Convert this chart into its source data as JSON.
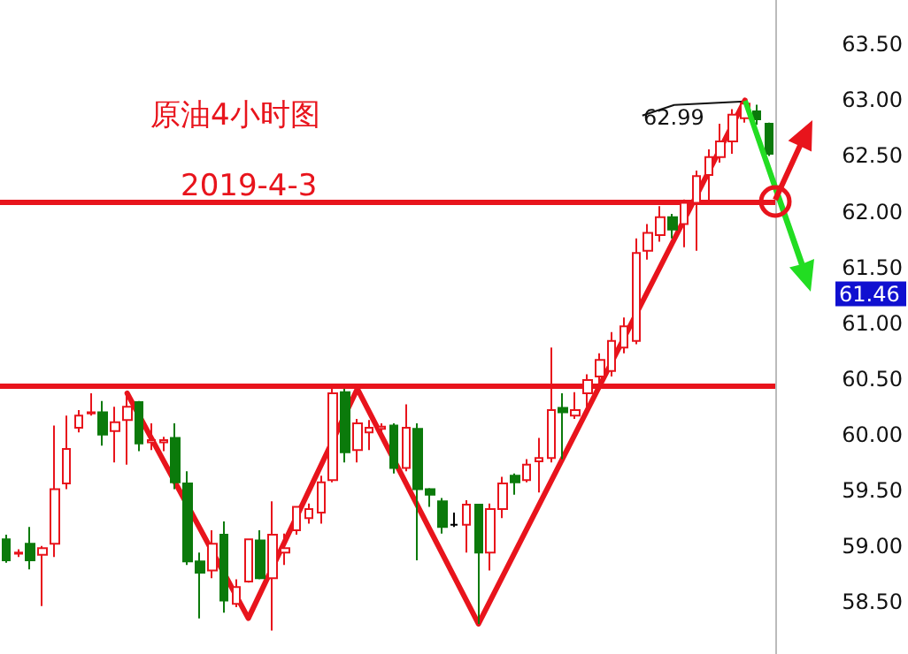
{
  "chart_data": {
    "type": "candlestick",
    "title": "原油4小时图",
    "subtitle": "2019-4-3",
    "categories": [
      null,
      null,
      null,
      null,
      null,
      null,
      null,
      null,
      null,
      null,
      null,
      null,
      null,
      null,
      null,
      null,
      null,
      null,
      null,
      null,
      null,
      null,
      null,
      null,
      null,
      null,
      null,
      null,
      null,
      null,
      null,
      null,
      null,
      null,
      null,
      null,
      null,
      null,
      null,
      null,
      null,
      null,
      null,
      null,
      null,
      null,
      null,
      null,
      null,
      null,
      null,
      null,
      null,
      null,
      null,
      null,
      null,
      null,
      null,
      null,
      null,
      null,
      null,
      null
    ],
    "series": [
      {
        "ohlc": [
          [
            59.06,
            59.1,
            58.85,
            58.87
          ],
          [
            58.93,
            58.97,
            58.9,
            58.94
          ],
          [
            59.02,
            59.17,
            58.79,
            58.87
          ],
          [
            58.92,
            59.0,
            58.46,
            58.98
          ],
          [
            59.02,
            60.08,
            58.9,
            59.51
          ],
          [
            59.56,
            60.17,
            59.51,
            59.87
          ],
          [
            60.06,
            60.22,
            60.02,
            60.17
          ],
          [
            60.19,
            60.37,
            60.17,
            60.2
          ],
          [
            60.2,
            60.3,
            59.9,
            60.0
          ],
          [
            60.03,
            60.25,
            59.75,
            60.11
          ],
          [
            60.13,
            60.38,
            59.73,
            60.25
          ],
          [
            60.29,
            60.3,
            59.85,
            59.92
          ],
          [
            59.93,
            60.1,
            59.86,
            59.95
          ],
          [
            59.93,
            59.98,
            59.85,
            59.95
          ],
          [
            59.97,
            60.1,
            59.51,
            59.57
          ],
          [
            59.56,
            59.67,
            58.83,
            58.86
          ],
          [
            58.86,
            58.94,
            58.35,
            58.76
          ],
          [
            58.78,
            59.14,
            58.71,
            59.02
          ],
          [
            59.1,
            59.22,
            58.4,
            58.51
          ],
          [
            58.48,
            58.7,
            58.45,
            58.63
          ],
          [
            58.68,
            59.06,
            58.67,
            59.06
          ],
          [
            59.05,
            59.14,
            58.7,
            58.71
          ],
          [
            58.71,
            59.4,
            58.24,
            59.1
          ],
          [
            58.94,
            59.11,
            58.83,
            58.98
          ],
          [
            59.14,
            59.35,
            59.1,
            59.35
          ],
          [
            59.25,
            59.38,
            59.2,
            59.33
          ],
          [
            59.3,
            59.63,
            59.2,
            59.57
          ],
          [
            59.59,
            60.41,
            59.57,
            60.37
          ],
          [
            60.38,
            60.41,
            59.75,
            59.84
          ],
          [
            59.86,
            60.14,
            59.75,
            60.1
          ],
          [
            60.02,
            60.13,
            59.86,
            60.06
          ],
          [
            60.05,
            60.1,
            60.0,
            60.07
          ],
          [
            60.08,
            60.1,
            59.65,
            59.7
          ],
          [
            59.7,
            60.27,
            59.67,
            60.06
          ],
          [
            60.05,
            60.1,
            58.87,
            59.51
          ],
          [
            59.51,
            59.52,
            59.35,
            59.46
          ],
          [
            59.4,
            59.43,
            59.11,
            59.17
          ],
          [
            59.19,
            59.3,
            59.17,
            59.19
          ],
          [
            59.19,
            59.41,
            58.94,
            59.37
          ],
          [
            59.37,
            59.37,
            58.3,
            58.94
          ],
          [
            58.94,
            59.38,
            58.78,
            59.33
          ],
          [
            59.33,
            59.62,
            59.25,
            59.56
          ],
          [
            59.63,
            59.65,
            59.46,
            59.57
          ],
          [
            59.59,
            59.78,
            59.57,
            59.73
          ],
          [
            59.76,
            59.97,
            59.48,
            59.79
          ],
          [
            59.79,
            60.78,
            59.75,
            60.22
          ],
          [
            60.24,
            60.37,
            59.78,
            60.2
          ],
          [
            60.17,
            60.38,
            60.14,
            60.22
          ],
          [
            60.37,
            60.54,
            60.25,
            60.49
          ],
          [
            60.52,
            60.73,
            60.46,
            60.67
          ],
          [
            60.57,
            60.92,
            60.52,
            60.84
          ],
          [
            60.78,
            61.05,
            60.73,
            60.97
          ],
          [
            60.84,
            61.76,
            60.81,
            61.63
          ],
          [
            61.65,
            61.89,
            61.57,
            61.81
          ],
          [
            61.79,
            62.05,
            61.73,
            61.95
          ],
          [
            61.95,
            61.98,
            61.76,
            61.84
          ],
          [
            61.89,
            62.11,
            61.68,
            62.08
          ],
          [
            62.08,
            62.37,
            61.65,
            62.32
          ],
          [
            62.33,
            62.56,
            62.08,
            62.49
          ],
          [
            62.49,
            62.79,
            62.44,
            62.63
          ],
          [
            62.63,
            62.92,
            62.52,
            62.87
          ],
          [
            62.84,
            62.99,
            62.8,
            62.97
          ],
          [
            62.9,
            62.96,
            62.78,
            62.83
          ],
          [
            62.79,
            62.8,
            62.5,
            62.52
          ]
        ],
        "colors": [
          "#0b7a0b",
          "#e8141c",
          "#0b7a0b",
          "#e8141c",
          "#e8141c",
          "#e8141c",
          "#e8141c",
          "#e8141c",
          "#0b7a0b",
          "#e8141c",
          "#e8141c",
          "#0b7a0b",
          "#e8141c",
          "#e8141c",
          "#0b7a0b",
          "#0b7a0b",
          "#0b7a0b",
          "#e8141c",
          "#0b7a0b",
          "#e8141c",
          "#e8141c",
          "#0b7a0b",
          "#e8141c",
          "#e8141c",
          "#e8141c",
          "#e8141c",
          "#e8141c",
          "#e8141c",
          "#0b7a0b",
          "#e8141c",
          "#e8141c",
          "#e8141c",
          "#0b7a0b",
          "#e8141c",
          "#0b7a0b",
          "#0b7a0b",
          "#0b7a0b",
          "#000000",
          "#e8141c",
          "#0b7a0b",
          "#e8141c",
          "#e8141c",
          "#0b7a0b",
          "#e8141c",
          "#e8141c",
          "#e8141c",
          "#0b7a0b",
          "#e8141c",
          "#e8141c",
          "#e8141c",
          "#e8141c",
          "#e8141c",
          "#e8141c",
          "#e8141c",
          "#e8141c",
          "#0b7a0b",
          "#e8141c",
          "#e8141c",
          "#e8141c",
          "#e8141c",
          "#e8141c",
          "#e8141c",
          "#0b7a0b",
          "#0b7a0b"
        ]
      },
      {
        "type": "line",
        "color": "#e8141c",
        "values": [
          null,
          null,
          null,
          null,
          null,
          null,
          null,
          null,
          null,
          null,
          60.37,
          null,
          null,
          null,
          null,
          null,
          null,
          null,
          null,
          null,
          58.35,
          null,
          null,
          null,
          null,
          null,
          null,
          null,
          null,
          60.41,
          null,
          null,
          null,
          null,
          null,
          null,
          null,
          null,
          null,
          58.3,
          null,
          null,
          null,
          null,
          null,
          null,
          null,
          null,
          null,
          null,
          null,
          null,
          null,
          null,
          null,
          null,
          null,
          null,
          null,
          null,
          null,
          63.0,
          null,
          null
        ]
      }
    ],
    "ylim": [
      58.03,
      63.9
    ],
    "yticks": [
      {
        "value": 58.5,
        "label": "58.50"
      },
      {
        "value": 59,
        "label": "59.00"
      },
      {
        "value": 59.5,
        "label": "59.50"
      },
      {
        "value": 60,
        "label": "60.00"
      },
      {
        "value": 60.5,
        "label": "60.50"
      },
      {
        "value": 61,
        "label": "61.00"
      },
      {
        "value": 61.5,
        "label": "61.50"
      },
      {
        "value": 62,
        "label": "62.00"
      },
      {
        "value": 62.5,
        "label": "62.50"
      },
      {
        "value": 63,
        "label": "63.00"
      },
      {
        "value": 63.5,
        "label": "63.50"
      }
    ],
    "tick_labels": "y",
    "grid": false,
    "ref_lines": [
      {
        "axis": "y",
        "value": 60.43,
        "color": "#e8141c"
      },
      {
        "axis": "y",
        "value": 62.08,
        "color": "#e8141c"
      }
    ],
    "annotations": [
      "62.99",
      "61.46"
    ]
  }
}
